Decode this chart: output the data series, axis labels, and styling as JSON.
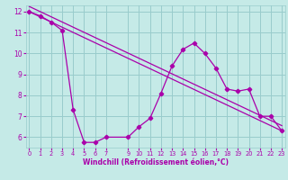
{
  "xlabel": "Windchill (Refroidissement éolien,°C)",
  "bg_color": "#c5eae7",
  "line_color": "#aa00aa",
  "grid_color": "#99cccc",
  "jagged_x": [
    0,
    1,
    2,
    3,
    4,
    5,
    6,
    7,
    9,
    10,
    11,
    12,
    13,
    14,
    15,
    16,
    17,
    18,
    19,
    20,
    21,
    22,
    23
  ],
  "jagged_y": [
    12.0,
    11.8,
    11.5,
    11.1,
    7.3,
    5.75,
    5.75,
    6.0,
    6.0,
    6.5,
    6.9,
    8.1,
    9.4,
    10.2,
    10.5,
    10.0,
    9.3,
    8.3,
    8.2,
    8.3,
    7.0,
    7.0,
    6.3
  ],
  "xlim": [
    -0.3,
    23.3
  ],
  "ylim": [
    5.5,
    12.3
  ],
  "yticks": [
    6,
    7,
    8,
    9,
    10,
    11,
    12
  ],
  "xticks": [
    0,
    1,
    2,
    3,
    4,
    5,
    6,
    7,
    9,
    10,
    11,
    12,
    13,
    14,
    15,
    16,
    17,
    18,
    19,
    20,
    21,
    22,
    23
  ]
}
